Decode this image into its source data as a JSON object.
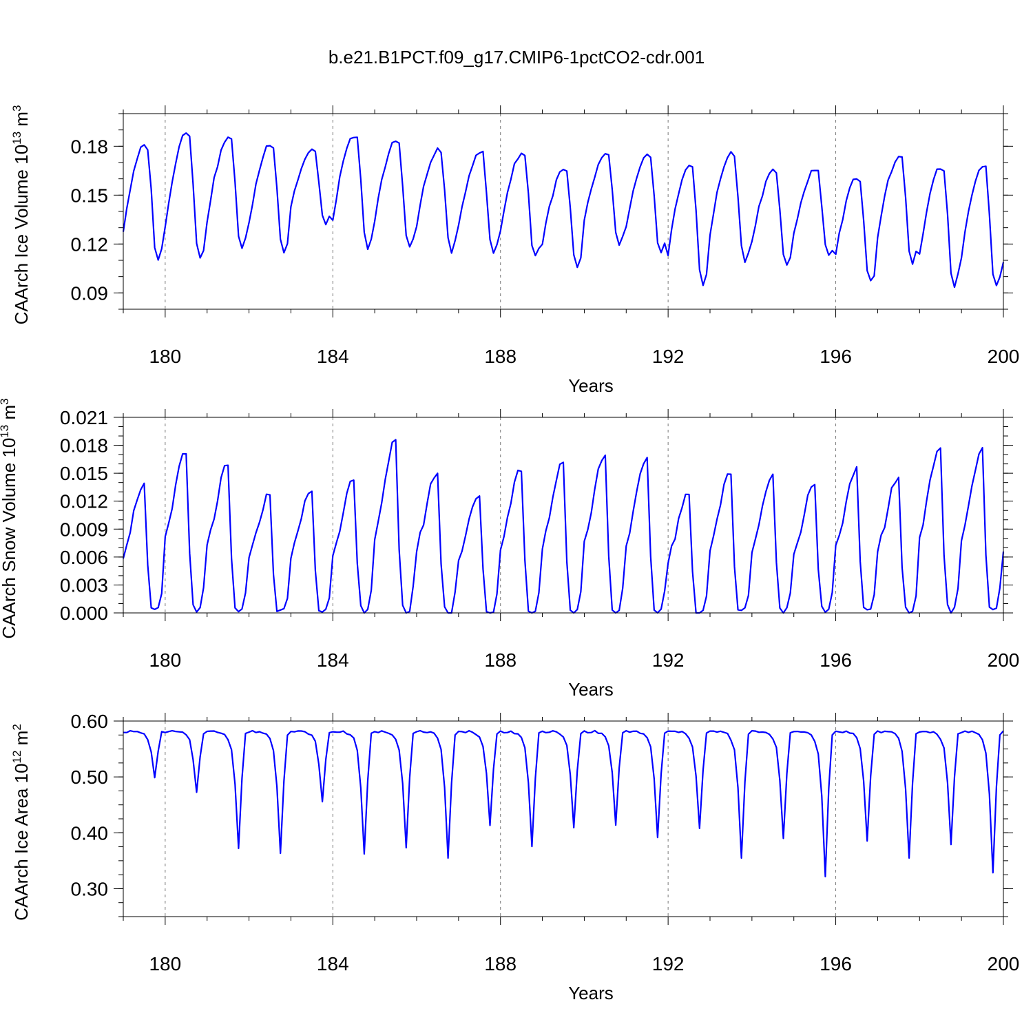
{
  "figure_title": "b.e21.B1PCT.f09_g17.CMIP6-1pctCO2-cdr.001",
  "line_color": "#0000ff",
  "chart_data": [
    {
      "type": "line",
      "name": "ice-volume",
      "ylabel_main": "CAArch Ice Volume 10",
      "ylabel_exp": "13",
      "ylabel_unit": " m",
      "ylabel_unit_exp": "3",
      "xlabel": "Years",
      "xlim": [
        179.0,
        200.0
      ],
      "ylim": [
        0.08,
        0.2
      ]
    },
    {
      "type": "line",
      "name": "snow-volume",
      "ylabel_main": "CAArch Snow Volume 10",
      "ylabel_exp": "13",
      "ylabel_unit": " m",
      "ylabel_unit_exp": "3",
      "xlabel": "Years",
      "xlim": [
        179.0,
        200.0
      ],
      "ylim": [
        0.0,
        0.021
      ]
    },
    {
      "type": "line",
      "name": "ice-area",
      "ylabel_main": "CAArch Ice Area 10",
      "ylabel_exp": "12",
      "ylabel_unit": " m",
      "ylabel_unit_exp": "2",
      "xlabel": "Years",
      "xlim": [
        179.0,
        200.0
      ],
      "ylim": [
        0.25,
        0.6
      ]
    }
  ]
}
